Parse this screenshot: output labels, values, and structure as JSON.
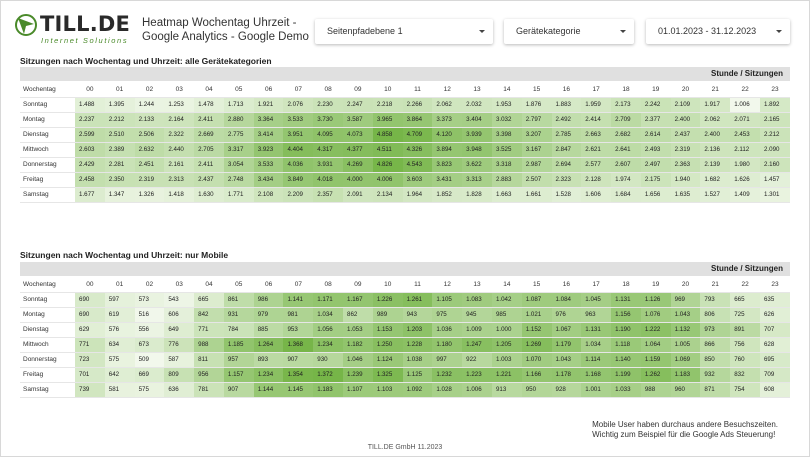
{
  "header": {
    "logo_name": "TILL.DE",
    "logo_tagline": "Internet Solutions",
    "title_line1": "Heatmap Wochentag Uhrzeit -",
    "title_line2": "Google Analytics - Google Demo",
    "filters": [
      {
        "value": "Seitenpfadebene 1"
      },
      {
        "value": "Gerätekategorie"
      },
      {
        "value": "01.01.2023 - 31.12.2023"
      }
    ]
  },
  "colors": {
    "accent": "#4a8a2a",
    "heat_low": "#f2f8ec",
    "heat_high": "#76b548"
  },
  "table1": {
    "title": "Sitzungen nach Wochentag und Uhrzeit: alle Gerätekategorien",
    "band_label": "Stunde / Sitzungen",
    "row_header": "Wochentag",
    "hours": [
      "00",
      "01",
      "02",
      "03",
      "04",
      "05",
      "06",
      "07",
      "08",
      "09",
      "10",
      "11",
      "12",
      "13",
      "14",
      "15",
      "16",
      "17",
      "18",
      "19",
      "20",
      "21",
      "22",
      "23"
    ],
    "rows": [
      {
        "day": "Sonntag",
        "values": [
          "1.488",
          "1.395",
          "1.244",
          "1.253",
          "1.478",
          "1.713",
          "1.921",
          "2.076",
          "2.230",
          "2.247",
          "2.218",
          "2.266",
          "2.062",
          "2.032",
          "1.953",
          "1.876",
          "1.883",
          "1.959",
          "2.173",
          "2.242",
          "2.109",
          "1.917",
          "1.006",
          "1.892"
        ]
      },
      {
        "day": "Montag",
        "values": [
          "2.237",
          "2.212",
          "2.133",
          "2.164",
          "2.411",
          "2.880",
          "3.364",
          "3.533",
          "3.730",
          "3.587",
          "3.965",
          "3.864",
          "3.373",
          "3.404",
          "3.032",
          "2.797",
          "2.492",
          "2.414",
          "2.709",
          "2.377",
          "2.400",
          "2.062",
          "2.071",
          "2.165"
        ]
      },
      {
        "day": "Dienstag",
        "values": [
          "2.599",
          "2.510",
          "2.506",
          "2.322",
          "2.669",
          "2.775",
          "3.414",
          "3.951",
          "4.095",
          "4.073",
          "4.858",
          "4.709",
          "4.120",
          "3.939",
          "3.398",
          "3.207",
          "2.785",
          "2.663",
          "2.682",
          "2.614",
          "2.437",
          "2.400",
          "2.453",
          "2.212"
        ]
      },
      {
        "day": "Mittwoch",
        "values": [
          "2.603",
          "2.389",
          "2.632",
          "2.440",
          "2.705",
          "3.317",
          "3.923",
          "4.404",
          "4.317",
          "4.377",
          "4.511",
          "4.326",
          "3.894",
          "3.948",
          "3.525",
          "3.167",
          "2.847",
          "2.621",
          "2.641",
          "2.493",
          "2.319",
          "2.136",
          "2.112",
          "2.090"
        ]
      },
      {
        "day": "Donnerstag",
        "values": [
          "2.429",
          "2.281",
          "2.451",
          "2.161",
          "2.411",
          "3.054",
          "3.533",
          "4.036",
          "3.931",
          "4.269",
          "4.826",
          "4.543",
          "3.823",
          "3.622",
          "3.318",
          "2.987",
          "2.694",
          "2.577",
          "2.607",
          "2.497",
          "2.363",
          "2.139",
          "1.980",
          "2.160"
        ]
      },
      {
        "day": "Freitag",
        "values": [
          "2.458",
          "2.350",
          "2.319",
          "2.313",
          "2.437",
          "2.748",
          "3.434",
          "3.849",
          "4.018",
          "4.000",
          "4.006",
          "3.603",
          "3.431",
          "3.313",
          "2.883",
          "2.507",
          "2.323",
          "2.128",
          "1.974",
          "2.175",
          "1.940",
          "1.682",
          "1.626",
          "1.457"
        ]
      },
      {
        "day": "Samstag",
        "values": [
          "1.677",
          "1.347",
          "1.326",
          "1.418",
          "1.630",
          "1.771",
          "2.108",
          "2.209",
          "2.357",
          "2.091",
          "2.134",
          "1.964",
          "1.852",
          "1.828",
          "1.663",
          "1.661",
          "1.528",
          "1.606",
          "1.684",
          "1.656",
          "1.635",
          "1.527",
          "1.409",
          "1.301"
        ]
      }
    ]
  },
  "table2": {
    "title": "Sitzungen nach Wochentag und Uhrzeit: nur Mobile",
    "band_label": "Stunde / Sitzungen",
    "row_header": "Wochentag",
    "hours": [
      "00",
      "01",
      "02",
      "03",
      "04",
      "05",
      "06",
      "07",
      "08",
      "09",
      "10",
      "11",
      "12",
      "13",
      "14",
      "15",
      "16",
      "17",
      "18",
      "19",
      "20",
      "21",
      "22",
      "23"
    ],
    "rows": [
      {
        "day": "Sonntag",
        "values": [
          "690",
          "597",
          "573",
          "543",
          "665",
          "861",
          "986",
          "1.141",
          "1.171",
          "1.167",
          "1.226",
          "1.261",
          "1.105",
          "1.083",
          "1.042",
          "1.087",
          "1.084",
          "1.045",
          "1.131",
          "1.126",
          "969",
          "793",
          "665",
          "635"
        ]
      },
      {
        "day": "Montag",
        "values": [
          "690",
          "619",
          "516",
          "606",
          "842",
          "931",
          "979",
          "981",
          "1.034",
          "862",
          "989",
          "943",
          "975",
          "945",
          "985",
          "1.021",
          "976",
          "963",
          "1.156",
          "1.076",
          "1.043",
          "806",
          "725",
          "626"
        ]
      },
      {
        "day": "Dienstag",
        "values": [
          "629",
          "576",
          "556",
          "649",
          "771",
          "784",
          "885",
          "953",
          "1.056",
          "1.053",
          "1.153",
          "1.203",
          "1.036",
          "1.009",
          "1.000",
          "1.152",
          "1.067",
          "1.131",
          "1.190",
          "1.222",
          "1.132",
          "973",
          "891",
          "707"
        ]
      },
      {
        "day": "Mittwoch",
        "values": [
          "771",
          "634",
          "673",
          "776",
          "988",
          "1.185",
          "1.264",
          "1.368",
          "1.234",
          "1.182",
          "1.250",
          "1.228",
          "1.180",
          "1.247",
          "1.205",
          "1.269",
          "1.179",
          "1.034",
          "1.118",
          "1.064",
          "1.005",
          "866",
          "756",
          "628"
        ]
      },
      {
        "day": "Donnerstag",
        "values": [
          "723",
          "575",
          "509",
          "587",
          "811",
          "957",
          "893",
          "907",
          "930",
          "1.046",
          "1.124",
          "1.038",
          "997",
          "922",
          "1.003",
          "1.070",
          "1.043",
          "1.114",
          "1.140",
          "1.159",
          "1.069",
          "850",
          "760",
          "695"
        ]
      },
      {
        "day": "Freitag",
        "values": [
          "701",
          "642",
          "669",
          "809",
          "956",
          "1.157",
          "1.234",
          "1.354",
          "1.372",
          "1.239",
          "1.325",
          "1.125",
          "1.232",
          "1.223",
          "1.221",
          "1.166",
          "1.178",
          "1.168",
          "1.199",
          "1.262",
          "1.183",
          "932",
          "832",
          "709"
        ]
      },
      {
        "day": "Samstag",
        "values": [
          "739",
          "581",
          "575",
          "636",
          "781",
          "907",
          "1.144",
          "1.145",
          "1.183",
          "1.107",
          "1.103",
          "1.092",
          "1.028",
          "1.006",
          "913",
          "950",
          "928",
          "1.001",
          "1.033",
          "988",
          "960",
          "871",
          "754",
          "608"
        ]
      }
    ]
  },
  "note": {
    "line1": "Mobile User haben durchaus andere Besuchszeiten.",
    "line2": "Wichtig zum Beispiel für die Google Ads Steuerung!"
  },
  "footer": "TILL.DE GmbH   11.2023"
}
